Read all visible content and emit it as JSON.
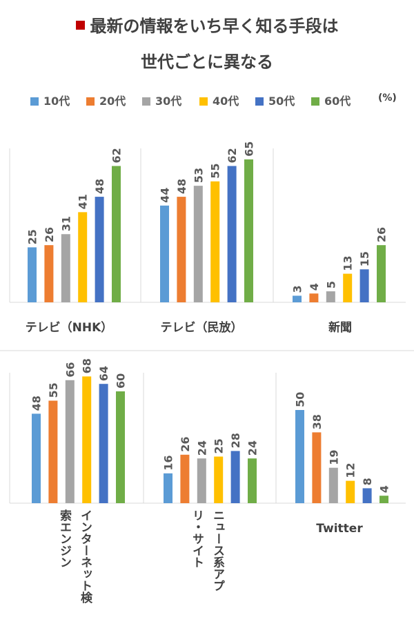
{
  "title_lines": [
    "最新の情報をいち早く知る手段は",
    "世代ごとに異なる"
  ],
  "unit": "(%)",
  "colors": {
    "title_marker": "#c00000",
    "series": [
      "#5b9bd5",
      "#ed7d31",
      "#a5a5a5",
      "#ffc000",
      "#4472c4",
      "#70ad47"
    ]
  },
  "chart_data": {
    "type": "bar",
    "title": "最新の情報をいち早く知る手段は 世代ごとに異なる",
    "unit": "(%)",
    "legend_position": "top",
    "grid": false,
    "ylim": [
      0,
      70
    ],
    "series_names": [
      "10代",
      "20代",
      "30代",
      "40代",
      "50代",
      "60代"
    ],
    "panels": [
      {
        "categories": [
          {
            "label": "テレビ（NHK）",
            "values": [
              25,
              26,
              31,
              41,
              48,
              62
            ]
          },
          {
            "label": "テレビ（民放）",
            "values": [
              44,
              48,
              53,
              55,
              62,
              65
            ]
          },
          {
            "label": "新聞",
            "values": [
              3,
              4,
              5,
              13,
              15,
              26
            ]
          }
        ]
      },
      {
        "categories": [
          {
            "label": "インターネット検索エンジン",
            "label_lines": [
              "インターネット検",
              "索エンジン"
            ],
            "values": [
              48,
              55,
              66,
              68,
              64,
              60
            ]
          },
          {
            "label": "ニュース系アプリ・サイト",
            "label_lines": [
              "ニュース系アプ",
              "リ・サイト"
            ],
            "values": [
              16,
              26,
              24,
              25,
              28,
              24
            ]
          },
          {
            "label": "Twitter",
            "values": [
              50,
              38,
              19,
              12,
              8,
              4
            ]
          }
        ]
      }
    ]
  }
}
